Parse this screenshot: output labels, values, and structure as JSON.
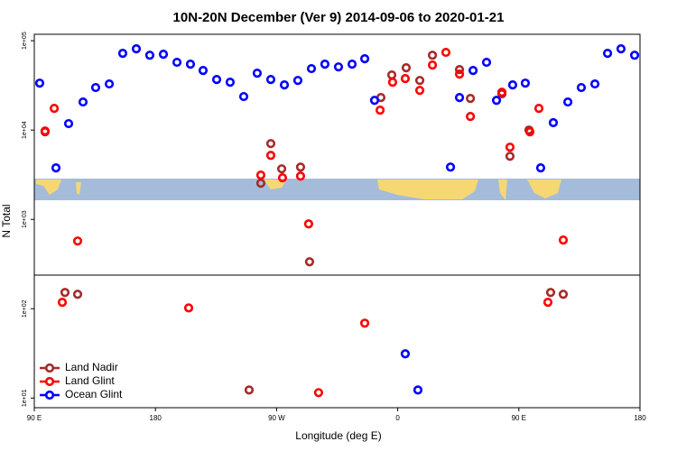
{
  "chart_data": {
    "type": "scatter",
    "title": "10N-20N December (Ver 9)   2014-09-06 to 2020-01-21",
    "x_label": "Longitude (deg E)",
    "y_label": "N Total",
    "log_y": true,
    "legend": "bottom-left",
    "xlim": [
      90,
      540
    ],
    "xticks": [
      {
        "value": 90,
        "label": "90 E"
      },
      {
        "value": 180,
        "label": "180"
      },
      {
        "value": 270,
        "label": "90 W"
      },
      {
        "value": 360,
        "label": "0"
      },
      {
        "value": 450,
        "label": "90 E"
      },
      {
        "value": 540,
        "label": "180"
      }
    ],
    "ylim": [
      7.8,
      118000
    ],
    "yticks": [
      {
        "value": 10,
        "label": "1e+01"
      },
      {
        "value": 100,
        "label": "1e+02"
      },
      {
        "value": 1000,
        "label": "1e+03"
      },
      {
        "value": 10000,
        "label": "1e+04"
      },
      {
        "value": 100000,
        "label": "1e+05"
      }
    ],
    "series": [
      {
        "name": "Land Nadir",
        "color": "#a52a2a",
        "x": [
          98.0,
          112.8,
          122.2,
          249.6,
          258.3,
          265.7,
          273.8,
          287.8,
          294.5,
          347.5,
          355.6,
          366.3,
          376.4,
          385.8,
          405.9,
          414.0,
          437.4,
          443.4,
          457.5,
          473.6,
          483.0
        ],
        "values": [
          9550,
          152,
          145,
          12.3,
          2540,
          7050,
          3680,
          3850,
          335,
          23100,
          41300,
          49800,
          35900,
          68800,
          47500,
          22600,
          25400,
          5090,
          10000,
          152,
          145
        ]
      },
      {
        "name": "Land Glint",
        "color": "#ff0000",
        "x": [
          98.0,
          104.8,
          110.8,
          122.2,
          204.7,
          258.3,
          265.7,
          274.4,
          287.8,
          293.8,
          301.2,
          335.5,
          346.9,
          356.2,
          365.6,
          376.4,
          385.8,
          395.8,
          405.9,
          414.0,
          437.4,
          443.4,
          458.2,
          464.9,
          471.6,
          483.0
        ],
        "values": [
          9770,
          17500,
          118,
          573,
          102,
          3130,
          5210,
          2920,
          3050,
          889,
          11.5,
          68.9,
          16700,
          34300,
          37700,
          27800,
          53400,
          74000,
          42300,
          14200,
          26500,
          6430,
          9550,
          17500,
          118,
          587
        ]
      },
      {
        "name": "Ocean Glint",
        "color": "#0000ff",
        "x": [
          94.0,
          106.1,
          115.5,
          126.2,
          135.6,
          145.7,
          155.7,
          165.8,
          175.8,
          185.9,
          196.0,
          206.0,
          215.4,
          225.5,
          235.5,
          245.6,
          255.6,
          265.7,
          275.8,
          285.8,
          295.9,
          305.9,
          316.0,
          326.1,
          335.5,
          342.8,
          365.6,
          375.0,
          399.2,
          405.9,
          416.0,
          426.0,
          433.4,
          445.4,
          454.8,
          466.2,
          475.6,
          486.4,
          496.4,
          506.5,
          515.9,
          525.9,
          536.0
        ],
        "values": [
          33500,
          3770,
          11800,
          20600,
          29900,
          32800,
          72200,
          81100,
          68800,
          70500,
          57300,
          54600,
          46400,
          36800,
          34300,
          23700,
          43300,
          36800,
          32000,
          35900,
          48700,
          54600,
          50900,
          54600,
          62800,
          21500,
          31.3,
          12.3,
          3850,
          23100,
          46400,
          57300,
          21500,
          32000,
          33500,
          3770,
          12100,
          20600,
          29900,
          32800,
          72200,
          81100,
          68800
        ]
      }
    ]
  }
}
